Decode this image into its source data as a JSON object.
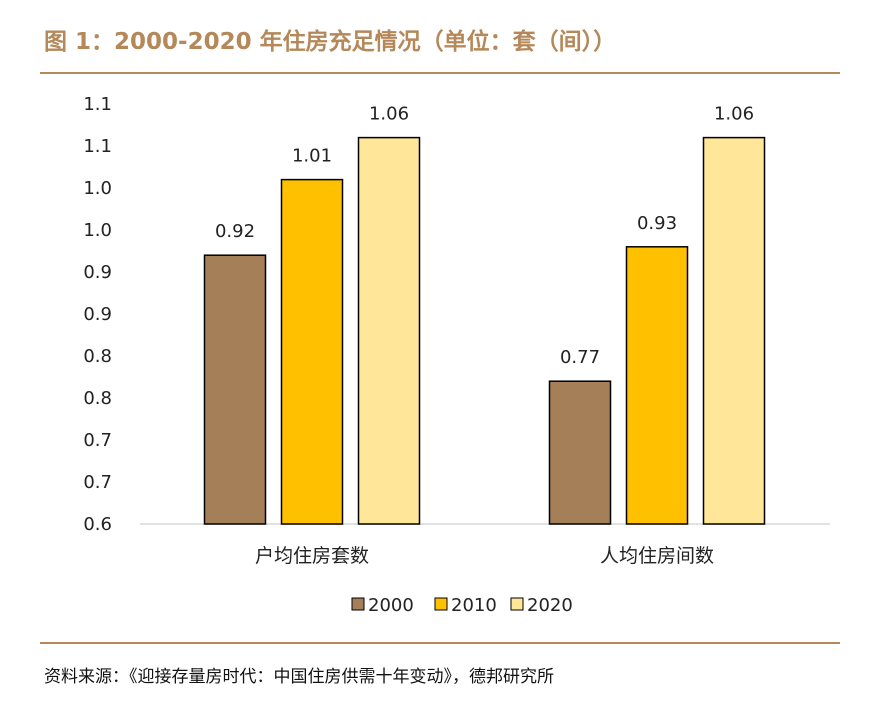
{
  "header": {
    "title": "图 1：2000-2020 年住房充足情况（单位：套（间））"
  },
  "footer": {
    "source": "资料来源：《迎接存量房时代：中国住房供需十年变动》，德邦研究所"
  },
  "chart_data": {
    "type": "bar",
    "title": "图 1：2000-2020 年住房充足情况（单位：套（间））",
    "xlabel": "",
    "ylabel": "",
    "categories": [
      "户均住房套数",
      "人均住房间数"
    ],
    "series": [
      {
        "name": "2000",
        "color": "#a57f58",
        "values": [
          0.92,
          0.77
        ],
        "labels": [
          "0.92",
          "0.77"
        ]
      },
      {
        "name": "2010",
        "color": "#ffc000",
        "values": [
          1.01,
          0.93
        ],
        "labels": [
          "1.01",
          "0.93"
        ]
      },
      {
        "name": "2020",
        "color": "#ffe699",
        "values": [
          1.06,
          1.06
        ],
        "labels": [
          "1.06",
          "1.06"
        ]
      }
    ],
    "ylim": [
      0.6,
      1.1
    ],
    "yticks": [
      0.6,
      0.65,
      0.7,
      0.75,
      0.8,
      0.85,
      0.9,
      0.95,
      1.0,
      1.05,
      1.1
    ],
    "ytick_labels": [
      "0.6",
      "0.7",
      "0.7",
      "0.8",
      "0.8",
      "0.9",
      "0.9",
      "1.0",
      "1.0",
      "1.1",
      "1.1"
    ],
    "grid": false,
    "legend": "bottom"
  }
}
